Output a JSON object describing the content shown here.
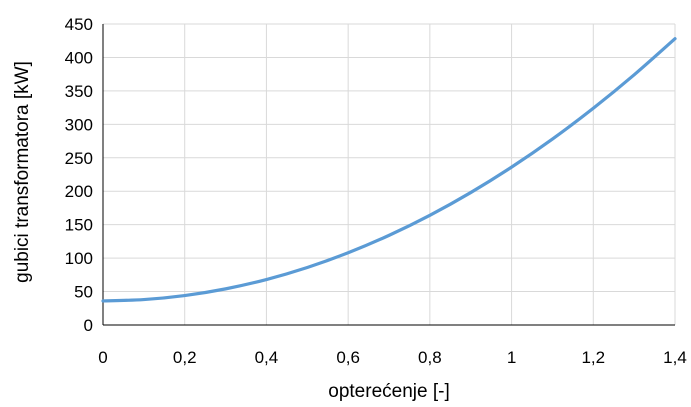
{
  "chart_data": {
    "type": "line",
    "title": "",
    "xlabel": "opterećenje [-]",
    "ylabel": "gubici transformatora [kW]",
    "xlim": [
      0,
      1.4
    ],
    "ylim": [
      0,
      450
    ],
    "x_ticks": [
      0,
      0.2,
      0.4,
      0.6,
      0.8,
      1.0,
      1.2,
      1.4
    ],
    "x_tick_labels": [
      "0",
      "0,2",
      "0,4",
      "0,6",
      "0,8",
      "1",
      "1,2",
      "1,4"
    ],
    "y_ticks": [
      0,
      50,
      100,
      150,
      200,
      250,
      300,
      350,
      400,
      450
    ],
    "y_tick_labels": [
      "0",
      "50",
      "100",
      "150",
      "200",
      "250",
      "300",
      "350",
      "400",
      "450"
    ],
    "grid": true,
    "legend": "none",
    "series": [
      {
        "color": "#5b9bd5",
        "x": [
          0,
          0.1,
          0.2,
          0.3,
          0.4,
          0.5,
          0.6,
          0.7,
          0.8,
          0.9,
          1.0,
          1.1,
          1.2,
          1.3,
          1.4
        ],
        "values": [
          36,
          38,
          44,
          54,
          68,
          86,
          108,
          134,
          164,
          198,
          236,
          278,
          324,
          374,
          428
        ]
      }
    ]
  }
}
